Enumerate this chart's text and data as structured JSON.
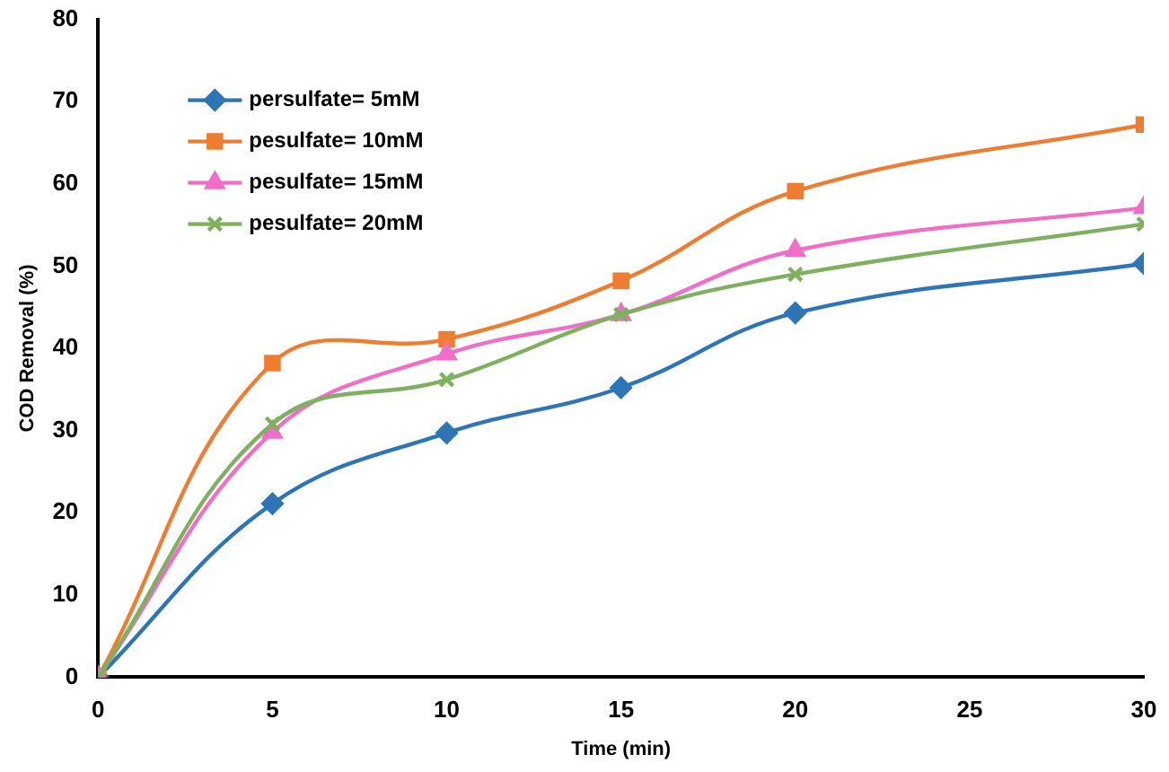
{
  "chart_data": {
    "type": "line",
    "xlabel": "Time (min)",
    "ylabel": "COD Removal (%)",
    "x": [
      0,
      5,
      10,
      15,
      20,
      30
    ],
    "series": [
      {
        "name": "persulfate= 5mM",
        "color": "#2e75b6",
        "marker": "diamond",
        "values": [
          0,
          21.1,
          29.7,
          35.2,
          44.3,
          50.3
        ]
      },
      {
        "name": "pesulfate= 10mM",
        "color": "#ed7d31",
        "marker": "square",
        "values": [
          0,
          38.2,
          41.1,
          48.2,
          59.1,
          67.2
        ]
      },
      {
        "name": "pesulfate= 15mM",
        "color": "#f06ec8",
        "marker": "triangle",
        "values": [
          0,
          29.8,
          39.3,
          44.1,
          51.9,
          57.1
        ]
      },
      {
        "name": "pesulfate= 20mM",
        "color": "#7fb060",
        "marker": "cross",
        "values": [
          0,
          30.8,
          36.2,
          44.1,
          49.0,
          55.1
        ]
      }
    ],
    "xlim": [
      0,
      30
    ],
    "xticks": [
      0,
      5,
      10,
      15,
      20,
      25,
      30
    ],
    "ylim": [
      0,
      80
    ],
    "yticks": [
      0,
      10,
      20,
      30,
      40,
      50,
      60,
      70,
      80
    ],
    "grid": false,
    "legend": "top left",
    "line_style": "solid"
  }
}
